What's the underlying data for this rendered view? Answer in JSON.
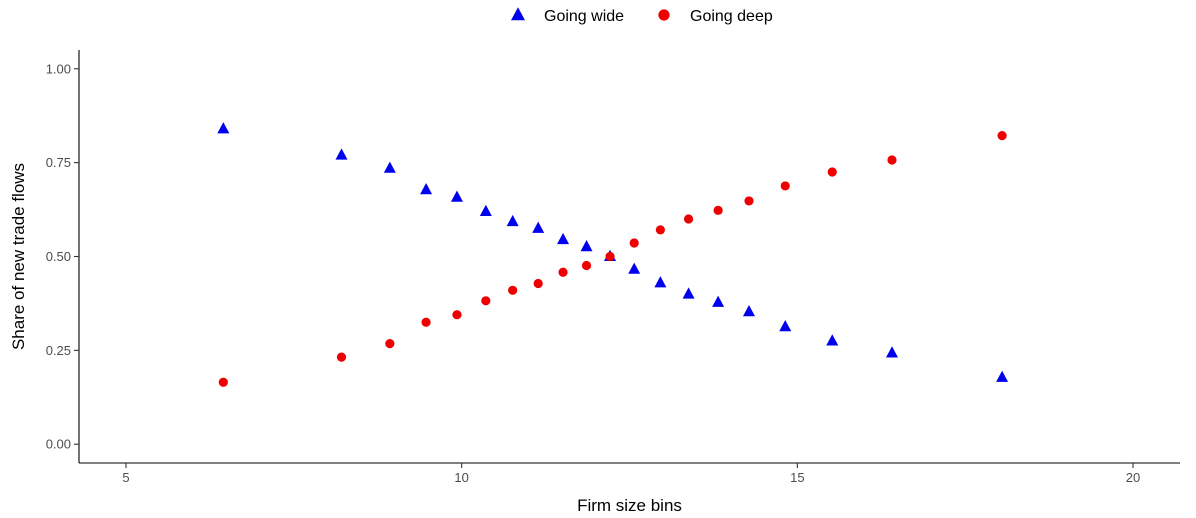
{
  "chart_data": {
    "type": "scatter",
    "xlabel": "Firm size bins",
    "ylabel": "Share of  new trade flows",
    "xlim": [
      4.3,
      20.7
    ],
    "ylim": [
      -0.05,
      1.05
    ],
    "x_ticks": [
      5,
      10,
      15,
      20
    ],
    "y_ticks": [
      0.0,
      0.25,
      0.5,
      0.75,
      1.0
    ],
    "x_tick_labels": [
      "5",
      "10",
      "15",
      "20"
    ],
    "y_tick_labels": [
      "0.00",
      "0.25",
      "0.50",
      "0.75",
      "1.00"
    ],
    "grid": false,
    "legend_position": "top",
    "series": [
      {
        "name": "Going wide",
        "marker": "triangle",
        "color": "#0000ee",
        "x": [
          6.45,
          8.21,
          8.93,
          9.47,
          9.93,
          10.36,
          10.76,
          11.14,
          11.51,
          11.86,
          12.21,
          12.57,
          12.96,
          13.38,
          13.82,
          14.28,
          14.82,
          15.52,
          16.41,
          18.05
        ],
        "y": [
          0.84,
          0.77,
          0.735,
          0.678,
          0.658,
          0.62,
          0.593,
          0.575,
          0.545,
          0.526,
          0.5,
          0.466,
          0.43,
          0.4,
          0.378,
          0.353,
          0.313,
          0.275,
          0.243,
          0.178
        ]
      },
      {
        "name": "Going deep",
        "marker": "circle",
        "color": "#ee0000",
        "x": [
          6.45,
          8.21,
          8.93,
          9.47,
          9.93,
          10.36,
          10.76,
          11.14,
          11.51,
          11.86,
          12.21,
          12.57,
          12.96,
          13.38,
          13.82,
          14.28,
          14.82,
          15.52,
          16.41,
          18.05
        ],
        "y": [
          0.165,
          0.232,
          0.268,
          0.325,
          0.345,
          0.382,
          0.41,
          0.428,
          0.458,
          0.476,
          0.5,
          0.536,
          0.571,
          0.6,
          0.623,
          0.648,
          0.688,
          0.725,
          0.757,
          0.822
        ]
      }
    ]
  }
}
